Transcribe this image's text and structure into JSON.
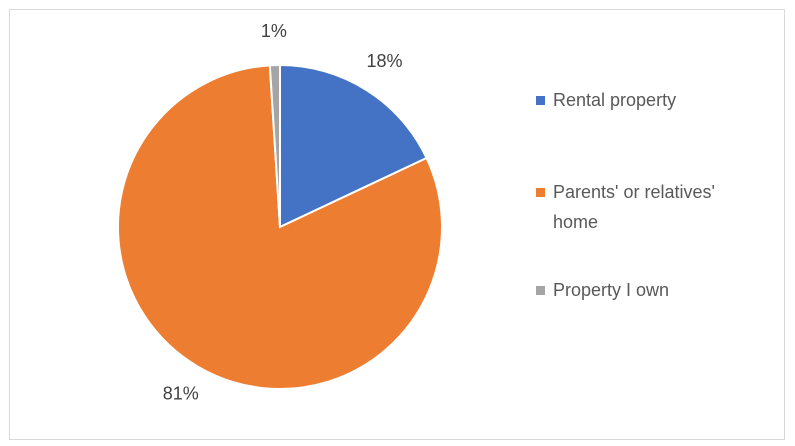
{
  "chart_data": {
    "type": "pie",
    "categories": [
      "Rental property",
      "Parents' or relatives' home",
      "Property I own"
    ],
    "values": [
      18,
      81,
      1
    ],
    "value_labels": [
      "18%",
      "81%",
      "1%"
    ],
    "colors": [
      "#4472c4",
      "#ed7d31",
      "#a5a5a5"
    ],
    "legend": "right"
  }
}
